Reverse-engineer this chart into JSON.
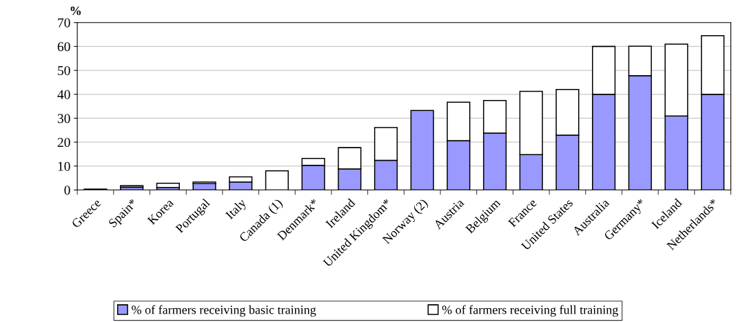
{
  "chart_data": {
    "type": "bar",
    "stacked": true,
    "ylabel": "%",
    "categories": [
      "Greece",
      "Spain*",
      "Korea",
      "Portugal",
      "Italy",
      "Canada (1)",
      "Denmark*",
      "Ireland",
      "United Kingdom*",
      "Norway (2)",
      "Austria",
      "Belgium",
      "France",
      "United States",
      "Australia",
      "Germany*",
      "Iceland",
      "Netherlands*"
    ],
    "series": [
      {
        "name": "% of farmers receiving basic training",
        "color": "#9999ff",
        "values": [
          null,
          1.2,
          1.0,
          2.7,
          3.3,
          0,
          10.3,
          8.8,
          12.4,
          33.2,
          20.6,
          23.8,
          14.8,
          22.9,
          40,
          47.8,
          30.9,
          40
        ]
      },
      {
        "name": "% of farmers receiving full training",
        "color": "#ffffff",
        "values": [
          0.4,
          0.6,
          1.8,
          0.6,
          2.2,
          8,
          2.9,
          8.9,
          13.7,
          0,
          16.1,
          13.6,
          26.4,
          19.1,
          20,
          12.3,
          30.1,
          24.5
        ]
      }
    ],
    "ylim": [
      0,
      70
    ],
    "yticks": [
      0,
      10,
      20,
      30,
      40,
      50,
      60,
      70
    ],
    "grid": "y",
    "legend": "bottom"
  }
}
